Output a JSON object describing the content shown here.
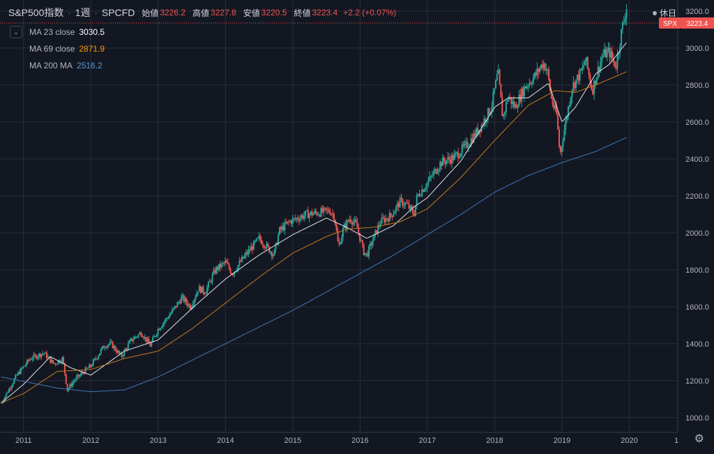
{
  "header": {
    "symbol": "S&P500指数",
    "interval": "1週",
    "source": "SPCFD",
    "open_label": "始値",
    "open": "3226.2",
    "high_label": "高値",
    "high": "3227.8",
    "low_label": "安値",
    "low": "3220.5",
    "close_label": "終値",
    "close": "3223.4",
    "change": "+2.2 (+0.07%)",
    "status": "休日"
  },
  "legend": {
    "ma23": {
      "name": "MA 23 close",
      "value": "3030.5",
      "color": "#ffffff"
    },
    "ma69": {
      "name": "MA 69 close",
      "value": "2871.9",
      "color": "#ff9800"
    },
    "ma200": {
      "name": "MA 200 MA",
      "value": "2516.2",
      "color": "#5b9bd5"
    }
  },
  "price_tag": {
    "label": "SPX",
    "value": "3223.4"
  },
  "colors": {
    "background": "#131722",
    "up": "#26a69a",
    "down": "#ef5350",
    "grid": "#2a2e39",
    "text": "#b2b5be"
  },
  "chart_data": {
    "type": "line",
    "style": "candlestick",
    "x_labels": [
      "2011",
      "2012",
      "2013",
      "2014",
      "2015",
      "2016",
      "2017",
      "2018",
      "2019",
      "2020",
      "1"
    ],
    "y_ticks": [
      1000.0,
      1200.0,
      1400.0,
      1600.0,
      1800.0,
      2000.0,
      2200.0,
      2400.0,
      2600.0,
      2800.0,
      3000.0,
      3200.0
    ],
    "y_tick_labels": [
      "1000.0",
      "1200.0",
      "1400.0",
      "1600.0",
      "1800.0",
      "2000.0",
      "2200.0",
      "2400.0",
      "2600.0",
      "2800.0",
      "3000.0",
      "3200.0"
    ],
    "ylim": [
      920,
      3260
    ],
    "x_range": [
      2010.65,
      2020.72
    ],
    "grid": true,
    "price": {
      "x": [
        2010.67,
        2010.9,
        2011.1,
        2011.3,
        2011.45,
        2011.58,
        2011.65,
        2011.75,
        2011.9,
        2012.0,
        2012.2,
        2012.3,
        2012.45,
        2012.6,
        2012.75,
        2012.88,
        2013.0,
        2013.2,
        2013.35,
        2013.48,
        2013.6,
        2013.7,
        2013.85,
        2014.0,
        2014.1,
        2014.3,
        2014.5,
        2014.6,
        2014.72,
        2014.8,
        2014.95,
        2015.2,
        2015.4,
        2015.55,
        2015.62,
        2015.68,
        2015.75,
        2015.85,
        2015.95,
        2016.05,
        2016.1,
        2016.3,
        2016.45,
        2016.6,
        2016.7,
        2016.8,
        2016.85,
        2017.0,
        2017.2,
        2017.4,
        2017.6,
        2017.8,
        2017.95,
        2018.05,
        2018.12,
        2018.2,
        2018.3,
        2018.45,
        2018.6,
        2018.72,
        2018.78,
        2018.85,
        2018.92,
        2018.97,
        2019.03,
        2019.15,
        2019.3,
        2019.35,
        2019.45,
        2019.55,
        2019.6,
        2019.7,
        2019.8,
        2019.88,
        2019.96
      ],
      "close": [
        1080,
        1230,
        1320,
        1350,
        1290,
        1320,
        1150,
        1200,
        1250,
        1280,
        1390,
        1400,
        1330,
        1420,
        1460,
        1390,
        1480,
        1570,
        1650,
        1600,
        1700,
        1680,
        1800,
        1840,
        1780,
        1880,
        1970,
        1930,
        1880,
        2010,
        2060,
        2100,
        2110,
        2120,
        2090,
        1920,
        2020,
        2080,
        2040,
        1900,
        1880,
        2060,
        2090,
        2170,
        2150,
        2100,
        2200,
        2270,
        2380,
        2410,
        2480,
        2580,
        2680,
        2870,
        2620,
        2740,
        2680,
        2790,
        2850,
        2920,
        2880,
        2710,
        2640,
        2420,
        2550,
        2790,
        2880,
        2940,
        2770,
        2900,
        2960,
        2980,
        2900,
        3080,
        3223
      ]
    },
    "series": [
      {
        "name": "MA 23 close",
        "x": [
          2010.67,
          2011.0,
          2011.4,
          2011.7,
          2012.0,
          2012.5,
          2013.0,
          2013.5,
          2014.0,
          2014.5,
          2015.0,
          2015.5,
          2015.8,
          2016.1,
          2016.5,
          2016.8,
          2017.0,
          2017.5,
          2018.0,
          2018.2,
          2018.5,
          2018.8,
          2019.0,
          2019.2,
          2019.5,
          2019.7,
          2019.96
        ],
        "y": [
          1080,
          1180,
          1330,
          1270,
          1230,
          1360,
          1420,
          1590,
          1750,
          1880,
          1990,
          2080,
          2030,
          1970,
          2040,
          2140,
          2190,
          2390,
          2680,
          2730,
          2730,
          2810,
          2600,
          2680,
          2860,
          2910,
          3030
        ]
      },
      {
        "name": "MA 69 close",
        "x": [
          2010.67,
          2011.0,
          2011.5,
          2012.0,
          2012.5,
          2013.0,
          2013.5,
          2014.0,
          2014.5,
          2015.0,
          2015.5,
          2015.8,
          2016.2,
          2016.6,
          2017.0,
          2017.5,
          2018.0,
          2018.5,
          2018.9,
          2019.2,
          2019.5,
          2019.96
        ],
        "y": [
          1080,
          1130,
          1250,
          1260,
          1320,
          1360,
          1480,
          1620,
          1760,
          1890,
          1980,
          2020,
          2030,
          2060,
          2130,
          2300,
          2500,
          2690,
          2770,
          2760,
          2800,
          2872
        ]
      },
      {
        "name": "MA 200 MA",
        "x": [
          2010.67,
          2011.5,
          2012.0,
          2012.5,
          2013.0,
          2013.5,
          2014.0,
          2014.5,
          2015.0,
          2015.5,
          2016.0,
          2016.5,
          2017.0,
          2017.5,
          2018.0,
          2018.5,
          2019.0,
          2019.5,
          2019.96
        ],
        "y": [
          1220,
          1160,
          1140,
          1150,
          1220,
          1310,
          1400,
          1490,
          1580,
          1680,
          1780,
          1880,
          1990,
          2100,
          2220,
          2310,
          2380,
          2440,
          2516
        ]
      }
    ]
  }
}
